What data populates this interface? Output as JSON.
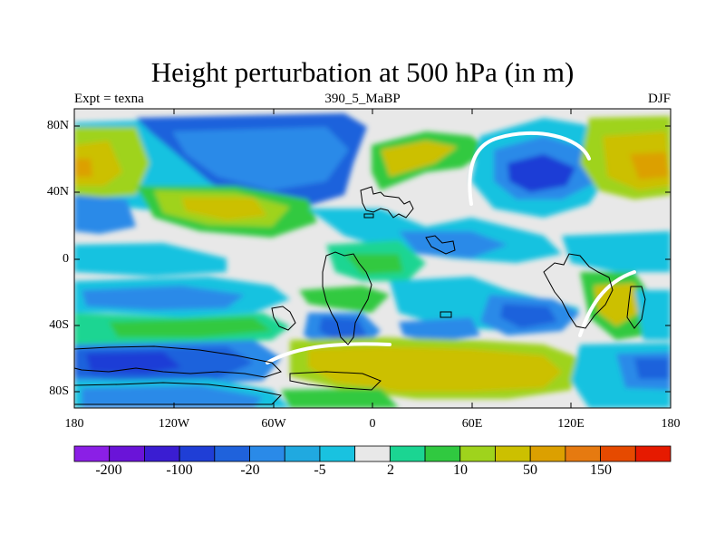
{
  "title": "Height perturbation at 500 hPa (in m)",
  "subtitle_left": "Expt = texna",
  "subtitle_center": "390_5_MaBP",
  "subtitle_right": "DJF",
  "map": {
    "lat_ticks": [
      "80N",
      "40N",
      "0",
      "40S",
      "80S"
    ],
    "lon_ticks": [
      "180",
      "120W",
      "60W",
      "0",
      "60E",
      "120E",
      "180"
    ]
  },
  "colorbar": {
    "colors": [
      "#8b1fe6",
      "#6a14d8",
      "#3a1dd2",
      "#1f3ed6",
      "#1f62dc",
      "#2a8ae8",
      "#20a9e0",
      "#19c2e0",
      "#e8e8e8",
      "#1bd592",
      "#30c940",
      "#9fd31c",
      "#ccc000",
      "#dca000",
      "#e67a10",
      "#e64a00",
      "#e61a00"
    ],
    "labels": [
      "-200",
      "-100",
      "-20",
      "-5",
      "2",
      "10",
      "50",
      "150"
    ]
  }
}
